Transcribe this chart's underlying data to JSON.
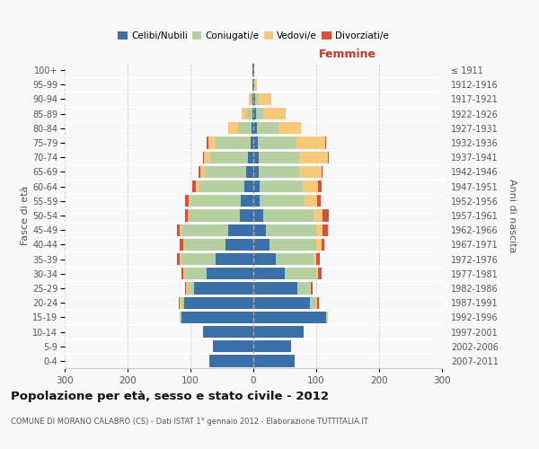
{
  "age_groups": [
    "0-4",
    "5-9",
    "10-14",
    "15-19",
    "20-24",
    "25-29",
    "30-34",
    "35-39",
    "40-44",
    "45-49",
    "50-54",
    "55-59",
    "60-64",
    "65-69",
    "70-74",
    "75-79",
    "80-84",
    "85-89",
    "90-94",
    "95-99",
    "100+"
  ],
  "birth_years": [
    "2007-2011",
    "2002-2006",
    "1997-2001",
    "1992-1996",
    "1987-1991",
    "1982-1986",
    "1977-1981",
    "1972-1976",
    "1967-1971",
    "1962-1966",
    "1957-1961",
    "1952-1956",
    "1947-1951",
    "1942-1946",
    "1937-1941",
    "1932-1936",
    "1927-1931",
    "1922-1926",
    "1917-1921",
    "1912-1916",
    "≤ 1911"
  ],
  "colors": {
    "celibi": "#3a6fa8",
    "coniugati": "#b5cfa0",
    "vedovi": "#f5c87a",
    "divorziati": "#d94f3d"
  },
  "males": {
    "celibi": [
      70,
      65,
      80,
      115,
      110,
      95,
      75,
      60,
      45,
      40,
      22,
      20,
      15,
      12,
      8,
      5,
      3,
      2,
      2,
      1,
      1
    ],
    "coniugati": [
      0,
      0,
      0,
      2,
      5,
      10,
      35,
      55,
      65,
      75,
      80,
      80,
      72,
      65,
      60,
      55,
      22,
      8,
      3,
      0,
      0
    ],
    "vedovi": [
      0,
      0,
      0,
      0,
      2,
      2,
      2,
      2,
      2,
      2,
      2,
      3,
      5,
      8,
      10,
      12,
      15,
      8,
      2,
      0,
      0
    ],
    "divorziati": [
      0,
      0,
      0,
      0,
      2,
      2,
      3,
      5,
      5,
      5,
      5,
      5,
      5,
      2,
      2,
      2,
      0,
      0,
      0,
      0,
      0
    ]
  },
  "females": {
    "nubili": [
      65,
      60,
      80,
      115,
      90,
      70,
      50,
      35,
      25,
      20,
      15,
      10,
      10,
      8,
      8,
      7,
      5,
      4,
      3,
      2,
      1
    ],
    "coniugati": [
      0,
      0,
      0,
      2,
      10,
      20,
      50,
      60,
      75,
      80,
      80,
      72,
      68,
      65,
      65,
      62,
      35,
      12,
      5,
      0,
      0
    ],
    "vedovi": [
      0,
      0,
      0,
      2,
      2,
      2,
      3,
      5,
      8,
      10,
      15,
      20,
      25,
      35,
      45,
      45,
      35,
      35,
      20,
      3,
      0
    ],
    "divorziati": [
      0,
      0,
      0,
      0,
      2,
      2,
      5,
      5,
      5,
      8,
      10,
      5,
      5,
      2,
      2,
      2,
      0,
      0,
      0,
      0,
      0
    ]
  },
  "title": "Popolazione per età, sesso e stato civile - 2012",
  "subtitle": "COMUNE DI MORANO CALABRO (CS) - Dati ISTAT 1° gennaio 2012 - Elaborazione TUTTITALIA.IT",
  "xlabel_right": "Femmine",
  "ylabel_left": "Fasce di età",
  "ylabel_right": "Anni di nascita",
  "xlim": 300,
  "background_color": "#f8f8f8",
  "grid_color": "#cccccc",
  "legend_labels": [
    "Celibi/Nubili",
    "Coniugati/e",
    "Vedovi/e",
    "Divorziati/e"
  ]
}
